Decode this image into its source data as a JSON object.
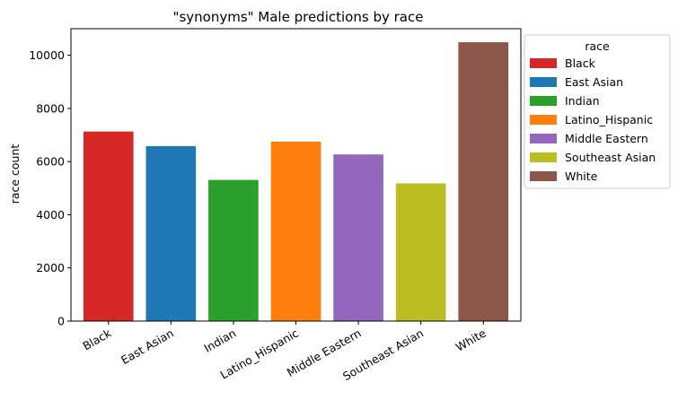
{
  "chart_data": {
    "type": "bar",
    "title": "\"synonyms\" Male predictions by race",
    "xlabel": "",
    "ylabel": "race count",
    "categories": [
      "Black",
      "East Asian",
      "Indian",
      "Latino_Hispanic",
      "Middle Eastern",
      "Southeast Asian",
      "White"
    ],
    "values": [
      7130,
      6580,
      5310,
      6750,
      6270,
      5180,
      10490
    ],
    "colors": [
      "#d62728",
      "#1f77b4",
      "#2ca02c",
      "#ff7f0e",
      "#9467bd",
      "#bcbd22",
      "#8c564b"
    ],
    "ylim": [
      0,
      11000
    ],
    "yticks": [
      0,
      2000,
      4000,
      6000,
      8000,
      10000
    ],
    "grid": false,
    "legend": {
      "title": "race",
      "placement": "outside-right-top",
      "entries": [
        "Black",
        "East Asian",
        "Indian",
        "Latino_Hispanic",
        "Middle Eastern",
        "Southeast Asian",
        "White"
      ]
    }
  }
}
